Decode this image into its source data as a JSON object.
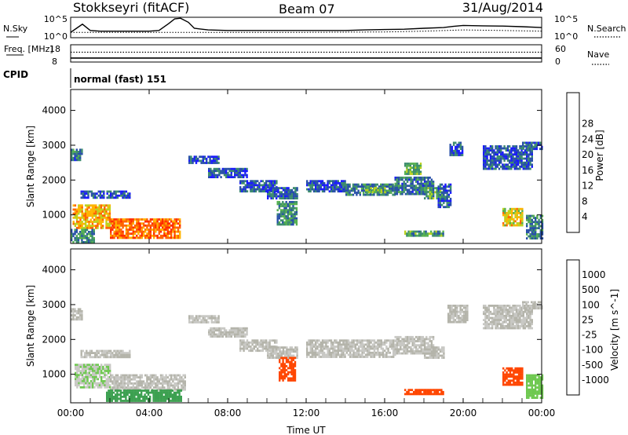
{
  "header": {
    "station": "Stokkseyri (fitACF)",
    "beam": "Beam 07",
    "date": "31/Aug/2014"
  },
  "colors": {
    "power": [
      "#1a1aff",
      "#2850a8",
      "#3c8c6e",
      "#55b050",
      "#bcd21e",
      "#ffb400",
      "#ff6400",
      "#ff2a00",
      "#e60000"
    ],
    "velocity": [
      "#e60000",
      "#ff4600",
      "#ff9600",
      "#b4b4aa",
      "#c8c8c4",
      "#6ec850",
      "#3ca050",
      "#2a6496",
      "#1414c8"
    ]
  },
  "chart_data": [
    {
      "type": "line",
      "panel": "noise",
      "left_label": "N.Sky",
      "right_label": "N.Search",
      "y_tick_labels": [
        "10^5",
        "10^0"
      ],
      "y_scale": "log",
      "series": [
        {
          "name": "N.Sky",
          "style": "solid",
          "x": [
            0.0,
            0.3,
            0.6,
            1.0,
            1.5,
            2.0,
            3.0,
            4.0,
            4.5,
            5.0,
            5.3,
            5.6,
            6.0,
            6.3,
            7.0,
            8.0,
            9.0,
            10.0,
            11.0,
            12.0,
            13.0,
            14.0,
            15.0,
            16.0,
            17.0,
            18.0,
            19.0,
            19.5,
            20.0,
            21.0,
            22.0,
            23.0,
            24.0
          ],
          "y": [
            20,
            200,
            2000,
            60,
            40,
            40,
            40,
            40,
            60,
            3000,
            40000,
            60000,
            6000,
            200,
            80,
            60,
            60,
            60,
            60,
            60,
            60,
            60,
            80,
            100,
            120,
            200,
            300,
            600,
            1000,
            800,
            700,
            500,
            300
          ]
        },
        {
          "name": "N.Search",
          "style": "dotted",
          "x": [
            0,
            4,
            8,
            12,
            16,
            18,
            20,
            22,
            24
          ],
          "y": [
            20,
            20,
            20,
            20,
            25,
            40,
            80,
            60,
            40
          ]
        }
      ]
    },
    {
      "type": "line",
      "panel": "frequency",
      "left_label": "Freq. [MHz]",
      "right_label": "Nave",
      "left_ticks": [
        18,
        8
      ],
      "right_ticks": [
        60,
        0
      ],
      "series": [
        {
          "name": "Freq. [MHz]",
          "style": "solid",
          "x": [
            0,
            24
          ],
          "y": [
            10.3,
            10.3
          ]
        },
        {
          "name": "Nave",
          "style": "dotted",
          "x": [
            0,
            24
          ],
          "y": [
            34,
            34
          ]
        }
      ]
    },
    {
      "type": "table",
      "panel": "cpid",
      "label": "CPID",
      "value": "normal (fast) 151"
    },
    {
      "type": "heatmap",
      "panel": "power",
      "ylabel": "Slant Range [km]",
      "ylim": [
        180,
        4600
      ],
      "y_ticks": [
        1000,
        2000,
        3000,
        4000
      ],
      "xlim": [
        0,
        24
      ],
      "colorbar": {
        "label": "Power [dB]",
        "range": [
          0,
          32
        ],
        "ticks": [
          4,
          8,
          12,
          16,
          20,
          24,
          28
        ]
      },
      "regions": [
        {
          "t0": 2.0,
          "t1": 5.6,
          "r0": 330,
          "r1": 900,
          "value": 26
        },
        {
          "t0": 0.1,
          "t1": 2.0,
          "r0": 600,
          "r1": 1300,
          "value": 22
        },
        {
          "t0": 0.0,
          "t1": 1.2,
          "r0": 200,
          "r1": 600,
          "value": 10
        },
        {
          "t0": 0.0,
          "t1": 0.6,
          "r0": 2600,
          "r1": 2900,
          "value": 8
        },
        {
          "t0": 0.5,
          "t1": 3.0,
          "r0": 1500,
          "r1": 1700,
          "value": 6
        },
        {
          "t0": 6.0,
          "t1": 7.5,
          "r0": 2500,
          "r1": 2700,
          "value": 5
        },
        {
          "t0": 7.0,
          "t1": 9.0,
          "r0": 2100,
          "r1": 2350,
          "value": 6
        },
        {
          "t0": 8.6,
          "t1": 10.5,
          "r0": 1700,
          "r1": 2000,
          "value": 6
        },
        {
          "t0": 10.0,
          "t1": 11.5,
          "r0": 1500,
          "r1": 1800,
          "value": 7
        },
        {
          "t0": 10.5,
          "t1": 11.5,
          "r0": 700,
          "r1": 1400,
          "value": 10
        },
        {
          "t0": 12.0,
          "t1": 14.0,
          "r0": 1700,
          "r1": 2000,
          "value": 6
        },
        {
          "t0": 14.0,
          "t1": 16.5,
          "r0": 1550,
          "r1": 1900,
          "value": 9
        },
        {
          "t0": 15.0,
          "t1": 16.0,
          "r0": 1650,
          "r1": 1800,
          "value": 15
        },
        {
          "t0": 16.5,
          "t1": 18.5,
          "r0": 1600,
          "r1": 2100,
          "value": 8
        },
        {
          "t0": 17.0,
          "t1": 17.8,
          "r0": 2200,
          "r1": 2500,
          "value": 14
        },
        {
          "t0": 18.0,
          "t1": 19.0,
          "r0": 1500,
          "r1": 1800,
          "value": 12
        },
        {
          "t0": 17.0,
          "t1": 19.0,
          "r0": 400,
          "r1": 550,
          "value": 12
        },
        {
          "t0": 19.3,
          "t1": 20.0,
          "r0": 2700,
          "r1": 3100,
          "value": 6
        },
        {
          "t0": 18.7,
          "t1": 19.4,
          "r0": 1200,
          "r1": 1900,
          "value": 6
        },
        {
          "t0": 21.0,
          "t1": 23.5,
          "r0": 2300,
          "r1": 3000,
          "value": 6
        },
        {
          "t0": 22.0,
          "t1": 23.0,
          "r0": 700,
          "r1": 1200,
          "value": 20
        },
        {
          "t0": 23.0,
          "t1": 24.0,
          "r0": 2900,
          "r1": 3100,
          "value": 7
        },
        {
          "t0": 23.2,
          "t1": 24.0,
          "r0": 300,
          "r1": 1000,
          "value": 9
        }
      ]
    },
    {
      "type": "heatmap",
      "panel": "velocity",
      "ylabel": "Slant Range [km]",
      "ylim": [
        180,
        4600
      ],
      "y_ticks": [
        1000,
        2000,
        3000,
        4000
      ],
      "xlim": [
        0,
        24
      ],
      "xlabel": "Time UT",
      "x_tick_labels": [
        "00:00",
        "04:00",
        "08:00",
        "12:00",
        "16:00",
        "20:00",
        "00:00"
      ],
      "x_ticks": [
        0,
        4,
        8,
        12,
        16,
        20,
        24
      ],
      "colorbar": {
        "label": "Velocity [m s^-1]",
        "ticks": [
          "1000",
          "500",
          "100",
          "25",
          "-25",
          "-100",
          "-500",
          "-1000"
        ]
      },
      "regions": [
        {
          "t0": 0.0,
          "t1": 0.6,
          "r0": 2600,
          "r1": 2900,
          "value": 0
        },
        {
          "t0": 0.2,
          "t1": 2.0,
          "r0": 600,
          "r1": 1300,
          "value": 20
        },
        {
          "t0": 0.5,
          "t1": 3.0,
          "r0": 1500,
          "r1": 1700,
          "value": 0
        },
        {
          "t0": 2.0,
          "t1": 5.8,
          "r0": 560,
          "r1": 1000,
          "value": 0
        },
        {
          "t0": 1.8,
          "t1": 5.6,
          "r0": 250,
          "r1": 560,
          "value": 150
        },
        {
          "t0": 6.0,
          "t1": 7.5,
          "r0": 2500,
          "r1": 2700,
          "value": 0
        },
        {
          "t0": 7.0,
          "t1": 9.0,
          "r0": 2100,
          "r1": 2350,
          "value": 0
        },
        {
          "t0": 8.6,
          "t1": 10.5,
          "r0": 1700,
          "r1": 2000,
          "value": 0
        },
        {
          "t0": 10.0,
          "t1": 11.5,
          "r0": 1500,
          "r1": 1800,
          "value": 0
        },
        {
          "t0": 10.6,
          "t1": 11.4,
          "r0": 800,
          "r1": 1500,
          "value": -200
        },
        {
          "t0": 12.0,
          "t1": 16.5,
          "r0": 1500,
          "r1": 2000,
          "value": 0
        },
        {
          "t0": 16.5,
          "t1": 18.5,
          "r0": 1600,
          "r1": 2100,
          "value": 0
        },
        {
          "t0": 18.0,
          "t1": 19.0,
          "r0": 1500,
          "r1": 1800,
          "value": 0
        },
        {
          "t0": 17.0,
          "t1": 19.0,
          "r0": 430,
          "r1": 580,
          "value": -300
        },
        {
          "t0": 19.2,
          "t1": 20.2,
          "r0": 2500,
          "r1": 3000,
          "value": 0
        },
        {
          "t0": 21.0,
          "t1": 23.5,
          "r0": 2300,
          "r1": 3000,
          "value": 0
        },
        {
          "t0": 22.0,
          "t1": 23.0,
          "r0": 700,
          "r1": 1200,
          "value": -300
        },
        {
          "t0": 23.0,
          "t1": 24.0,
          "r0": 2900,
          "r1": 3100,
          "value": 0
        },
        {
          "t0": 23.2,
          "t1": 24.0,
          "r0": 300,
          "r1": 1000,
          "value": 60
        }
      ]
    }
  ]
}
